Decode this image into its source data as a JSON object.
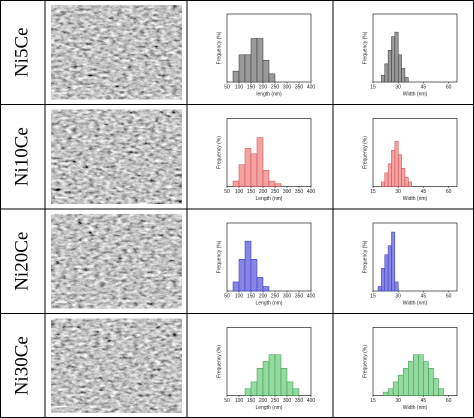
{
  "rows": [
    "Ni5Ce",
    "Ni10Ce",
    "Ni20Ce",
    "Ni30Ce"
  ],
  "chart_data": [
    {
      "type": "histogram",
      "x_label": "length (nm)",
      "y_label": "Frequency (%)",
      "color": "#9a9a9a",
      "edge": "#333333",
      "bins": [
        75,
        100,
        125,
        150,
        175,
        200,
        225,
        250
      ],
      "values": [
        4,
        10,
        10,
        16,
        16,
        8,
        3
      ],
      "xlim": [
        50,
        400
      ],
      "xticks": [
        50,
        100,
        150,
        200,
        250,
        300,
        350,
        400
      ],
      "ylim": [
        0,
        25
      ]
    },
    {
      "type": "histogram",
      "x_label": "Width (nm)",
      "y_label": "Frequency (%)",
      "color": "#9a9a9a",
      "edge": "#333333",
      "bins": [
        20,
        22,
        24,
        26,
        28,
        30,
        32,
        34,
        36
      ],
      "values": [
        3,
        8,
        14,
        20,
        22,
        12,
        6,
        2
      ],
      "xlim": [
        15,
        65
      ],
      "xticks": [
        15,
        30,
        45,
        60
      ],
      "ylim": [
        0,
        30
      ]
    },
    {
      "type": "histogram",
      "x_label": "Length (nm)",
      "y_label": "Frequency (%)",
      "color": "#f4a3a3",
      "edge": "#cc4444",
      "bins": [
        75,
        100,
        125,
        150,
        175,
        200,
        225,
        250,
        275
      ],
      "values": [
        2,
        8,
        14,
        12,
        18,
        6,
        2,
        1
      ],
      "xlim": [
        50,
        400
      ],
      "xticks": [
        50,
        100,
        150,
        200,
        250,
        300,
        350,
        400
      ],
      "ylim": [
        0,
        25
      ]
    },
    {
      "type": "histogram",
      "x_label": "Width (nm)",
      "y_label": "Frequency (%)",
      "color": "#f4a3a3",
      "edge": "#cc4444",
      "bins": [
        20,
        22,
        24,
        26,
        28,
        30,
        32,
        34,
        36,
        38
      ],
      "values": [
        2,
        6,
        10,
        16,
        20,
        14,
        8,
        4,
        2
      ],
      "xlim": [
        15,
        65
      ],
      "xticks": [
        15,
        30,
        45,
        60
      ],
      "ylim": [
        0,
        30
      ]
    },
    {
      "type": "histogram",
      "x_label": "Length (nm)",
      "y_label": "Frequency (%)",
      "color": "#8585e6",
      "edge": "#3333bb",
      "bins": [
        75,
        100,
        125,
        150,
        175,
        200,
        225
      ],
      "values": [
        4,
        14,
        22,
        14,
        6,
        2
      ],
      "xlim": [
        50,
        400
      ],
      "xticks": [
        50,
        100,
        150,
        200,
        250,
        300,
        350,
        400
      ],
      "ylim": [
        0,
        30
      ]
    },
    {
      "type": "histogram",
      "x_label": "Width (nm)",
      "y_label": "Frequency (%)",
      "color": "#8585e6",
      "edge": "#3333bb",
      "bins": [
        18,
        20,
        22,
        24,
        26,
        28,
        30
      ],
      "values": [
        2,
        10,
        16,
        20,
        26,
        4
      ],
      "xlim": [
        15,
        65
      ],
      "xticks": [
        15,
        30,
        45,
        60
      ],
      "ylim": [
        0,
        30
      ]
    },
    {
      "type": "histogram",
      "x_label": "Length (nm)",
      "y_label": "Frequency (%)",
      "color": "#93d9a0",
      "edge": "#339944",
      "bins": [
        125,
        150,
        175,
        200,
        225,
        250,
        275,
        300,
        325,
        350
      ],
      "values": [
        2,
        4,
        8,
        10,
        12,
        12,
        8,
        4,
        2
      ],
      "xlim": [
        50,
        400
      ],
      "xticks": [
        50,
        100,
        150,
        200,
        250,
        300,
        350,
        400
      ],
      "ylim": [
        0,
        20
      ]
    },
    {
      "type": "histogram",
      "x_label": "Width (nm)",
      "y_label": "Frequency (%)",
      "color": "#93d9a0",
      "edge": "#339944",
      "bins": [
        21,
        24,
        27,
        30,
        33,
        36,
        39,
        42,
        45,
        48,
        51,
        54,
        57
      ],
      "values": [
        1,
        2,
        4,
        6,
        8,
        10,
        12,
        12,
        10,
        8,
        5,
        2
      ],
      "xlim": [
        15,
        65
      ],
      "xticks": [
        15,
        30,
        45,
        60
      ],
      "ylim": [
        0,
        20
      ]
    }
  ]
}
